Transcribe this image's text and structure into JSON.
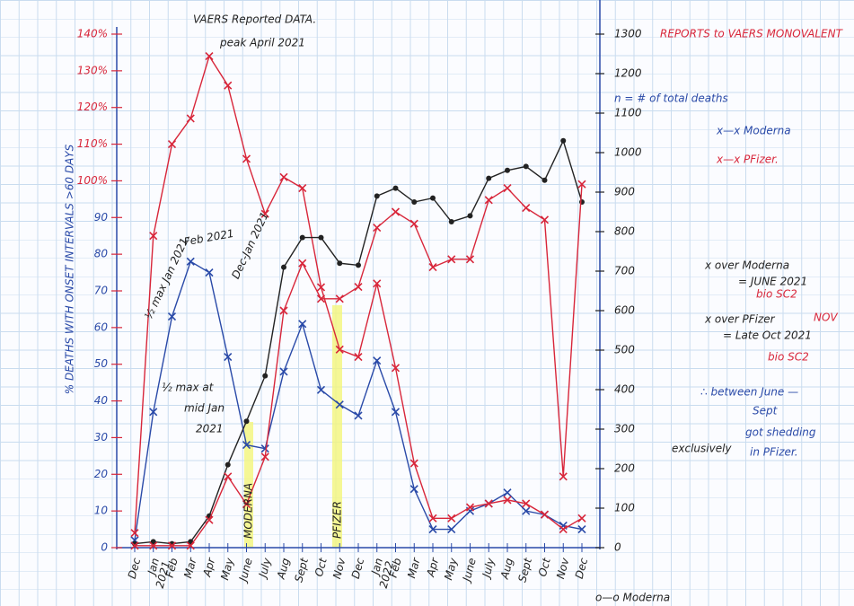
{
  "chart_data": {
    "type": "line",
    "title": "VAERS Reported DATA.",
    "subtitle": "REPORTS to VAERS MONOVALENT",
    "y_label": "% DEATHS WITH ONSET INTERVALS >60 DAYS",
    "y2_label": "n = # of total deaths",
    "categories": [
      "Dec",
      "Jan",
      "Feb",
      "Mar",
      "Apr",
      "May",
      "June",
      "July",
      "Aug",
      "Sept",
      "Oct",
      "Nov",
      "Dec",
      "Jan",
      "Feb",
      "Mar",
      "Apr",
      "May",
      "June",
      "July",
      "Aug",
      "Sept",
      "Oct",
      "Nov",
      "Dec"
    ],
    "series": [
      {
        "name": "x—x Moderna",
        "color": "#2a4aa8",
        "values": [
          2,
          37,
          63,
          78,
          75,
          52,
          28,
          27,
          48,
          61,
          43,
          39,
          36,
          51,
          37,
          16,
          5,
          5,
          10,
          12,
          15,
          10,
          9,
          6,
          5
        ]
      },
      {
        "name": "x—x PFizer.",
        "color": "#d8263a",
        "values": [
          4,
          85,
          110,
          117,
          134,
          126,
          106,
          91,
          101,
          98,
          71,
          54,
          52,
          72,
          49,
          23,
          8,
          8,
          11,
          12,
          13,
          12,
          9,
          5,
          8
        ]
      },
      {
        "color": "#222222",
        "axis": "y2",
        "values": [
          10,
          15,
          10,
          15,
          80,
          210,
          320,
          435,
          710,
          785,
          785,
          720,
          715,
          890,
          910,
          875,
          885,
          825,
          840,
          935,
          955,
          965,
          930,
          1030,
          875
        ]
      },
      {
        "color": "#d8263a",
        "axis": "y2",
        "values": [
          5,
          5,
          5,
          5,
          70,
          180,
          110,
          230,
          600,
          720,
          630,
          630,
          660,
          810,
          850,
          820,
          710,
          730,
          730,
          880,
          910,
          860,
          830,
          180,
          920
        ]
      }
    ],
    "ylim": [
      0,
      140
    ],
    "yticks": [
      0,
      10,
      20,
      30,
      40,
      50,
      60,
      70,
      80,
      90,
      {
        "value": 100,
        "label": "100%"
      },
      {
        "value": 110,
        "label": "110%"
      },
      {
        "value": 120,
        "label": "120%"
      },
      {
        "value": 130,
        "label": "130%"
      },
      {
        "value": 140,
        "label": "140%"
      }
    ],
    "y2lim": [
      0,
      1300
    ],
    "y2ticks": [
      0,
      100,
      200,
      300,
      400,
      500,
      600,
      700,
      800,
      900,
      1000,
      1100,
      1200,
      1300
    ],
    "annotations": [
      "peak April 2021",
      "Feb 2021",
      "½ max Jan 2021.",
      "Dec-Jan 2021",
      "½ max at",
      "mid Jan",
      "2021",
      "x over Moderna",
      "= JUNE 2021",
      "bio SC2",
      "x over PFizer",
      "NOV",
      "= Late Oct 2021",
      "bio SC2",
      "∴ between June —",
      "Sept",
      "got shedding",
      "exclusively",
      "in PFizer.",
      "MODERNA",
      "PFIZER",
      "2021",
      "2022",
      "o—o Moderna"
    ]
  }
}
